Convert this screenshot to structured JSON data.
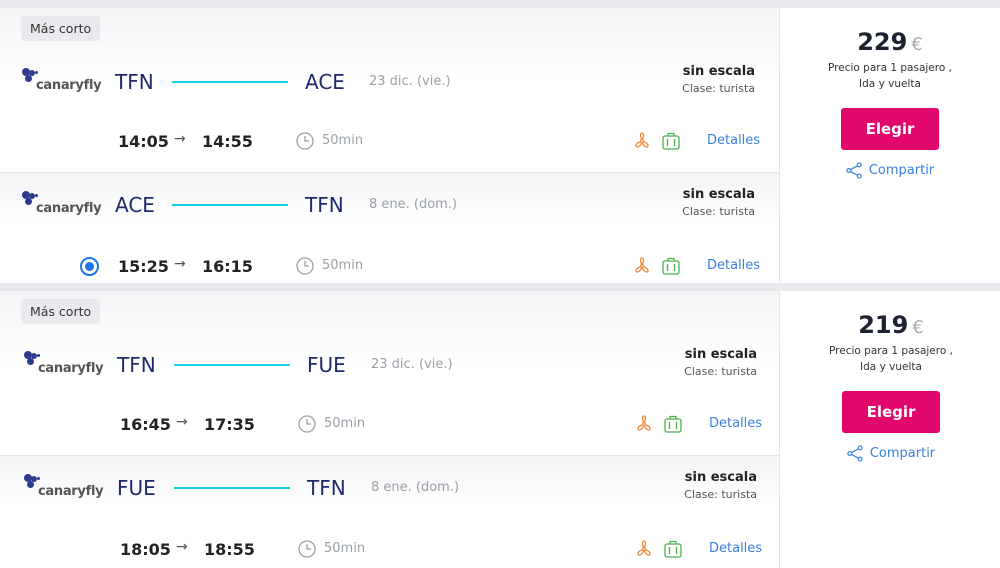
{
  "colors": {
    "accent": "#e2086b",
    "link": "#3a80e0",
    "route_line": "#1ad0e8",
    "code": "#1e2a6b"
  },
  "icons": {
    "duration": "clock-icon",
    "seat": "fan-icon",
    "baggage": "suitcase-icon",
    "share": "share-icon"
  },
  "offers": [
    {
      "badge": "Más corto",
      "price": "229",
      "currency": "€",
      "price_note_1": "Precio para 1 pasajero ,",
      "price_note_2": "Ida y vuelta",
      "choose": "Elegir",
      "share": "Compartir",
      "segments": [
        {
          "airline": "canaryfly",
          "from": "TFN",
          "to": "ACE",
          "date": "23 dic. (vie.)",
          "stops": "sin escala",
          "class": "Clase: turista",
          "dep": "14:05",
          "arr": "14:55",
          "arrow": "→",
          "duration": "50min",
          "details": "Detalles",
          "selected": false
        },
        {
          "airline": "canaryfly",
          "from": "ACE",
          "to": "TFN",
          "date": "8 ene. (dom.)",
          "stops": "sin escala",
          "class": "Clase: turista",
          "dep": "15:25",
          "arr": "16:15",
          "arrow": "→",
          "duration": "50min",
          "details": "Detalles",
          "selected": true
        }
      ]
    },
    {
      "badge": "Más corto",
      "price": "219",
      "currency": "€",
      "price_note_1": "Precio para 1 pasajero ,",
      "price_note_2": "Ida y vuelta",
      "choose": "Elegir",
      "share": "Compartir",
      "segments": [
        {
          "airline": "canaryfly",
          "from": "TFN",
          "to": "FUE",
          "date": "23 dic. (vie.)",
          "stops": "sin escala",
          "class": "Clase: turista",
          "dep": "16:45",
          "arr": "17:35",
          "arrow": "→",
          "duration": "50min",
          "details": "Detalles",
          "selected": false
        },
        {
          "airline": "canaryfly",
          "from": "FUE",
          "to": "TFN",
          "date": "8 ene. (dom.)",
          "stops": "sin escala",
          "class": "Clase: turista",
          "dep": "18:05",
          "arr": "18:55",
          "arrow": "→",
          "duration": "50min",
          "details": "Detalles",
          "selected": false
        }
      ]
    }
  ]
}
